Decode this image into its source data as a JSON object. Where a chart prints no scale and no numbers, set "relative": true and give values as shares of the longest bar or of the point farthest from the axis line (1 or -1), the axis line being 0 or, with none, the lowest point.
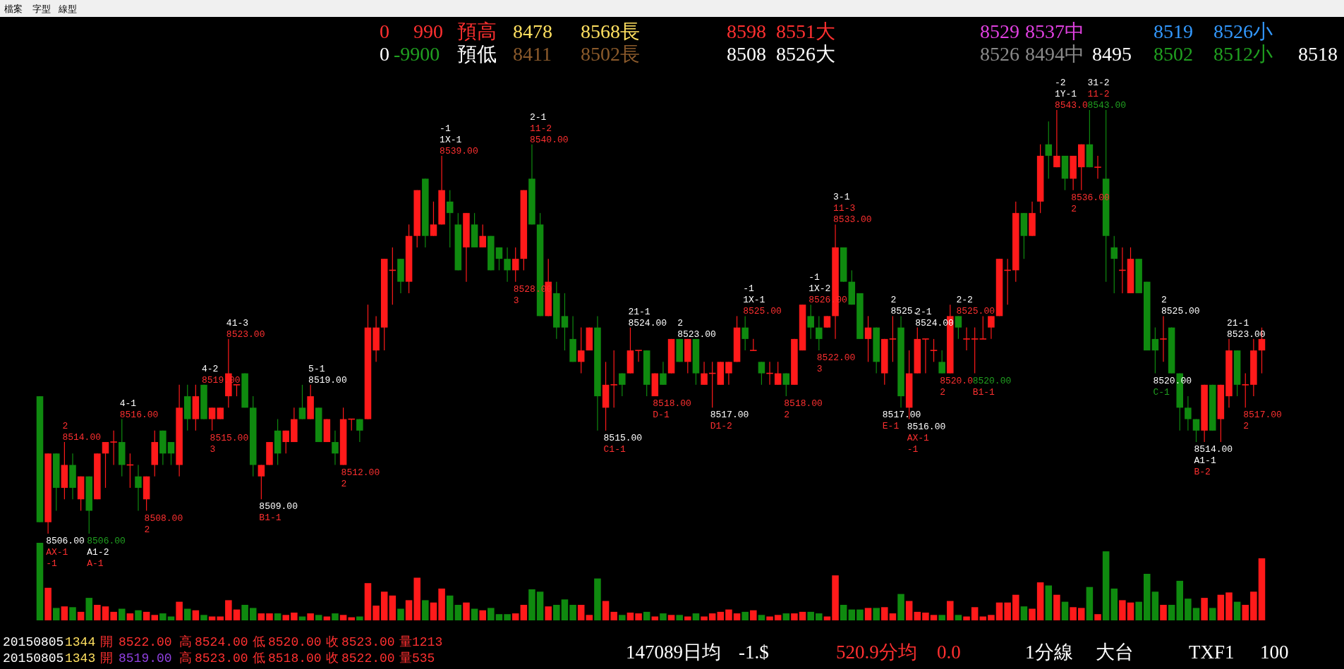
{
  "chart_data": [
    {
      "type": "candlestick",
      "tick_labels": false,
      "categories": [
        null,
        null,
        null,
        null,
        null,
        null,
        null,
        null,
        null,
        null,
        null,
        null,
        null,
        null,
        null,
        null,
        null,
        null,
        null,
        null,
        null,
        null,
        null,
        null,
        null,
        null,
        null,
        null,
        null,
        null,
        null,
        null,
        null,
        null,
        null,
        null,
        null,
        null,
        null,
        null,
        null,
        null,
        null,
        null,
        null,
        null,
        null,
        null,
        null,
        null,
        null,
        null,
        null,
        null,
        null,
        null,
        null,
        null,
        null,
        null,
        null,
        null,
        null,
        null,
        null,
        null,
        null,
        null,
        null,
        null,
        null,
        null,
        null,
        null,
        null,
        null,
        null,
        null,
        null,
        null,
        null,
        null,
        null,
        null,
        null,
        null,
        null,
        null,
        null,
        null,
        null,
        null,
        null,
        null,
        null,
        null,
        null,
        null,
        null,
        null,
        null,
        null,
        null,
        null,
        null,
        null,
        null,
        null,
        null,
        null,
        null,
        null,
        null,
        null,
        null,
        null,
        null,
        null,
        null,
        null,
        null,
        null,
        null,
        null,
        null,
        null,
        null,
        null,
        null,
        null,
        null,
        null,
        null,
        null,
        null,
        null,
        null,
        null,
        null,
        null,
        null,
        null,
        null,
        null,
        null,
        null,
        null,
        null,
        null,
        null
      ],
      "ohlc": [
        [
          8518,
          8518,
          8507,
          8507
        ],
        [
          8507,
          8513,
          8506,
          8513
        ],
        [
          8513,
          8513,
          8508,
          8510
        ],
        [
          8510,
          8514,
          8509,
          8512
        ],
        [
          8512,
          8513,
          8509,
          8510
        ],
        [
          8509,
          8511,
          8508,
          8511
        ],
        [
          8511,
          8511,
          8506,
          8508
        ],
        [
          8509,
          8513,
          8509,
          8513
        ],
        [
          8513,
          8514,
          8510,
          8514
        ],
        [
          8514,
          8515,
          8512,
          8514
        ],
        [
          8514,
          8516,
          8511,
          8512
        ],
        [
          8512,
          8513,
          8510,
          8512
        ],
        [
          8511,
          8512,
          8508,
          8510
        ],
        [
          8509,
          8511,
          8508,
          8511
        ],
        [
          8512,
          8515,
          8511,
          8514
        ],
        [
          8515,
          8515,
          8512,
          8513
        ],
        [
          8514,
          8514,
          8512,
          8513
        ],
        [
          8512,
          8519,
          8511,
          8517
        ],
        [
          8518,
          8519,
          8515,
          8516
        ],
        [
          8516,
          8519,
          8515,
          8518
        ],
        [
          8519,
          8519,
          8516,
          8516
        ],
        [
          8516,
          8517,
          8515,
          8517
        ],
        [
          8516,
          8517,
          8516,
          8517
        ],
        [
          8518,
          8523,
          8517,
          8520
        ],
        [
          8519,
          8519,
          8518,
          8519
        ],
        [
          8520,
          8520,
          8517,
          8517
        ],
        [
          8517,
          8518,
          8511,
          8512
        ],
        [
          8511,
          8512,
          8509,
          8512
        ],
        [
          8512,
          8514,
          8512,
          8514
        ],
        [
          8515,
          8516,
          8512,
          8513
        ],
        [
          8514,
          8515,
          8513,
          8515
        ],
        [
          8514,
          8517,
          8514,
          8516
        ],
        [
          8517,
          8519,
          8516,
          8516
        ],
        [
          8516,
          8519,
          8516,
          8518
        ],
        [
          8517,
          8517,
          8514,
          8514
        ],
        [
          8514,
          8516,
          8514,
          8516
        ],
        [
          8514,
          8515,
          8512,
          8513
        ],
        [
          8512,
          8517,
          8512,
          8516
        ],
        [
          8516,
          8516,
          8515,
          8516
        ],
        [
          8516,
          8516,
          8514,
          8515
        ],
        [
          8516,
          8526,
          8516,
          8524
        ],
        [
          8522,
          8525,
          8521,
          8524
        ],
        [
          8524,
          8530,
          8522,
          8530
        ],
        [
          8529,
          8531,
          8526,
          8529
        ],
        [
          8530,
          8530,
          8527,
          8528
        ],
        [
          8528,
          8533,
          8527,
          8532
        ],
        [
          8532,
          8536,
          8531,
          8536
        ],
        [
          8537,
          8537,
          8531,
          8532
        ],
        [
          8532,
          8535,
          8532,
          8533
        ],
        [
          8533,
          8539,
          8533,
          8536
        ],
        [
          8535,
          8536,
          8531,
          8534
        ],
        [
          8533,
          8534,
          8529,
          8529
        ],
        [
          8531,
          8534,
          8528,
          8534
        ],
        [
          8533,
          8534,
          8531,
          8531
        ],
        [
          8531,
          8533,
          8531,
          8532
        ],
        [
          8532,
          8532,
          8529,
          8529
        ],
        [
          8531,
          8531,
          8529,
          8530
        ],
        [
          8530,
          8531,
          8528,
          8529
        ],
        [
          8529,
          8531,
          8528,
          8530
        ],
        [
          8530,
          8536,
          8529,
          8536
        ],
        [
          8537,
          8540,
          8533,
          8533
        ],
        [
          8533,
          8534,
          8525,
          8525
        ],
        [
          8525,
          8530,
          8525,
          8528
        ],
        [
          8527,
          8528,
          8523,
          8524
        ],
        [
          8525,
          8527,
          8522,
          8524
        ],
        [
          8523,
          8525,
          8521,
          8521
        ],
        [
          8521,
          8524,
          8520,
          8522
        ],
        [
          8522,
          8524,
          8522,
          8524
        ],
        [
          8524,
          8525,
          8515,
          8518
        ],
        [
          8517,
          8521,
          8515,
          8519
        ],
        [
          8519,
          8522,
          8517,
          8519
        ],
        [
          8520,
          8520,
          8518,
          8519
        ],
        [
          8520,
          8524,
          8520,
          8522
        ],
        [
          8522,
          8522,
          8521,
          8522
        ],
        [
          8522,
          8522,
          8518,
          8519
        ],
        [
          8518,
          8520,
          8518,
          8520
        ],
        [
          8520,
          8521,
          8519,
          8519
        ],
        [
          8520,
          8523,
          8520,
          8523
        ],
        [
          8523,
          8523,
          8521,
          8521
        ],
        [
          8521,
          8523,
          8520,
          8523
        ],
        [
          8523,
          8523,
          8519,
          8520
        ],
        [
          8519,
          8521,
          8519,
          8520
        ],
        [
          8520,
          8521,
          8517,
          8520
        ],
        [
          8519,
          8521,
          8519,
          8521
        ],
        [
          8520,
          8521,
          8519,
          8521
        ],
        [
          8521,
          8525,
          8521,
          8524
        ],
        [
          8524,
          8525,
          8522,
          8523
        ],
        [
          8522,
          8523,
          8522,
          8522
        ],
        [
          8521,
          8521,
          8519,
          8520
        ],
        [
          8520,
          8521,
          8519,
          8520
        ],
        [
          8519,
          8521,
          8519,
          8520
        ],
        [
          8520,
          8520,
          8518,
          8519
        ],
        [
          8519,
          8523,
          8519,
          8523
        ],
        [
          8522,
          8526,
          8522,
          8526
        ],
        [
          8525,
          8526,
          8523,
          8524
        ],
        [
          8524,
          8525,
          8522,
          8523
        ],
        [
          8524,
          8525,
          8524,
          8525
        ],
        [
          8525,
          8533,
          8523,
          8531
        ],
        [
          8531,
          8531,
          8528,
          8528
        ],
        [
          8528,
          8529,
          8526,
          8526
        ],
        [
          8527,
          8527,
          8523,
          8523
        ],
        [
          8523,
          8525,
          8521,
          8524
        ],
        [
          8524,
          8524,
          8520,
          8521
        ],
        [
          8520,
          8523,
          8519,
          8523
        ],
        [
          8523,
          8525,
          8521,
          8523
        ],
        [
          8524,
          8525,
          8517,
          8518
        ],
        [
          8517,
          8522,
          8516,
          8520
        ],
        [
          8520,
          8524,
          8520,
          8523
        ],
        [
          8523,
          8523,
          8520,
          8523
        ],
        [
          8522,
          8523,
          8521,
          8522
        ],
        [
          8521,
          8522,
          8520,
          8520
        ],
        [
          8520,
          8526,
          8520,
          8525
        ],
        [
          8525,
          8525,
          8523,
          8524
        ],
        [
          8523,
          8524,
          8522,
          8523
        ],
        [
          8523,
          8524,
          8520,
          8523
        ],
        [
          8523,
          8525,
          8523,
          8523
        ],
        [
          8524,
          8525,
          8523,
          8525
        ],
        [
          8525,
          8530,
          8525,
          8530
        ],
        [
          8529,
          8530,
          8526,
          8529
        ],
        [
          8529,
          8535,
          8528,
          8534
        ],
        [
          8534,
          8534,
          8530,
          8532
        ],
        [
          8532,
          8535,
          8532,
          8534
        ],
        [
          8535,
          8540,
          8534,
          8539
        ],
        [
          8540,
          8542,
          8537,
          8539
        ],
        [
          8538,
          8543,
          8538,
          8539
        ],
        [
          8539,
          8539,
          8536,
          8537
        ],
        [
          8537,
          8539,
          8536,
          8539
        ],
        [
          8538,
          8540,
          8536,
          8540
        ],
        [
          8540,
          8543,
          8538,
          8538
        ],
        [
          8538,
          8539,
          8537,
          8538
        ],
        [
          8537,
          8543,
          8528,
          8532
        ],
        [
          8531,
          8532,
          8527,
          8530
        ],
        [
          8529,
          8531,
          8527,
          8529
        ],
        [
          8527,
          8531,
          8527,
          8530
        ],
        [
          8530,
          8530,
          8527,
          8527
        ],
        [
          8528,
          8528,
          8522,
          8522
        ],
        [
          8523,
          8524,
          8520,
          8522
        ],
        [
          8523,
          8525,
          8521,
          8523
        ],
        [
          8524,
          8524,
          8520,
          8520
        ],
        [
          8520,
          8520,
          8515,
          8517
        ],
        [
          8517,
          8518,
          8515,
          8516
        ],
        [
          8516,
          8516,
          8514,
          8515
        ],
        [
          8515,
          8519,
          8514,
          8519
        ],
        [
          8519,
          8519,
          8515,
          8515
        ],
        [
          8516,
          8519,
          8514,
          8519
        ],
        [
          8518,
          8523,
          8517,
          8522
        ],
        [
          8522,
          8522,
          8518,
          8519
        ],
        [
          8519,
          8520,
          8517,
          8519
        ],
        [
          8519,
          8523,
          8518,
          8522
        ],
        [
          8522,
          8524,
          8520,
          8523
        ]
      ],
      "colors": [
        "#0f8a0f",
        "#ff1a1a",
        "#0f8a0f",
        "#ff1a1a",
        "#0f8a0f",
        "#ff1a1a",
        "#0f8a0f",
        "#ff1a1a",
        "#ff1a1a",
        "#ff1a1a",
        "#0f8a0f",
        "#ff1a1a",
        "#0f8a0f",
        "#ff1a1a",
        "#ff1a1a",
        "#0f8a0f",
        "#0f8a0f",
        "#ff1a1a",
        "#0f8a0f",
        "#ff1a1a",
        "#0f8a0f",
        "#ff1a1a",
        "#ff1a1a",
        "#ff1a1a",
        "#ff1a1a",
        "#0f8a0f",
        "#0f8a0f",
        "#ff1a1a",
        "#ff1a1a",
        "#0f8a0f",
        "#ff1a1a",
        "#ff1a1a",
        "#0f8a0f",
        "#ff1a1a",
        "#0f8a0f",
        "#ff1a1a",
        "#0f8a0f",
        "#ff1a1a",
        "#ff1a1a",
        "#0f8a0f",
        "#ff1a1a",
        "#ff1a1a",
        "#ff1a1a",
        "#ff1a1a",
        "#0f8a0f",
        "#ff1a1a",
        "#ff1a1a",
        "#0f8a0f",
        "#ff1a1a",
        "#ff1a1a",
        "#0f8a0f",
        "#0f8a0f",
        "#ff1a1a",
        "#0f8a0f",
        "#ff1a1a",
        "#0f8a0f",
        "#0f8a0f",
        "#0f8a0f",
        "#ff1a1a",
        "#ff1a1a",
        "#0f8a0f",
        "#0f8a0f",
        "#ff1a1a",
        "#0f8a0f",
        "#0f8a0f",
        "#0f8a0f",
        "#ff1a1a",
        "#ff1a1a",
        "#0f8a0f",
        "#ff1a1a",
        "#ff1a1a",
        "#0f8a0f",
        "#ff1a1a",
        "#ff1a1a",
        "#0f8a0f",
        "#ff1a1a",
        "#0f8a0f",
        "#ff1a1a",
        "#0f8a0f",
        "#ff1a1a",
        "#0f8a0f",
        "#ff1a1a",
        "#ff1a1a",
        "#ff1a1a",
        "#ff1a1a",
        "#ff1a1a",
        "#0f8a0f",
        "#ff1a1a",
        "#0f8a0f",
        "#ff1a1a",
        "#ff1a1a",
        "#0f8a0f",
        "#ff1a1a",
        "#ff1a1a",
        "#0f8a0f",
        "#0f8a0f",
        "#ff1a1a",
        "#ff1a1a",
        "#0f8a0f",
        "#0f8a0f",
        "#0f8a0f",
        "#ff1a1a",
        "#0f8a0f",
        "#ff1a1a",
        "#ff1a1a",
        "#0f8a0f",
        "#ff1a1a",
        "#ff1a1a",
        "#ff1a1a",
        "#ff1a1a",
        "#0f8a0f",
        "#ff1a1a",
        "#0f8a0f",
        "#ff1a1a",
        "#ff1a1a",
        "#ff1a1a",
        "#ff1a1a",
        "#ff1a1a",
        "#ff1a1a",
        "#ff1a1a",
        "#0f8a0f",
        "#ff1a1a",
        "#ff1a1a",
        "#0f8a0f",
        "#ff1a1a",
        "#0f8a0f",
        "#ff1a1a",
        "#ff1a1a",
        "#0f8a0f",
        "#ff1a1a",
        "#0f8a0f",
        "#0f8a0f",
        "#ff1a1a",
        "#ff1a1a",
        "#0f8a0f",
        "#0f8a0f",
        "#0f8a0f",
        "#ff1a1a",
        "#0f8a0f",
        "#0f8a0f",
        "#0f8a0f",
        "#0f8a0f",
        "#ff1a1a",
        "#0f8a0f",
        "#ff1a1a",
        "#ff1a1a",
        "#0f8a0f",
        "#ff1a1a",
        "#ff1a1a",
        "#ff1a1a"
      ],
      "annotations": [
        "檔案",
        "字型",
        "線型",
        "0",
        "990",
        "預高",
        "8478",
        "8568長",
        "8598",
        "8551大",
        "8529",
        "8537中",
        "8519",
        "8526小",
        "0",
        "-9900",
        "預低",
        "8411",
        "8502長",
        "8508",
        "8526大",
        "8526",
        "8494中",
        "8495",
        "8502",
        "8512小",
        "8518",
        "20150805",
        "1344",
        "開",
        "8522.00",
        "高",
        "8524.00",
        "低",
        "8520.00",
        "收",
        "8523.00",
        "量1213",
        "20150805",
        "1343",
        "開",
        "8519.00",
        "高",
        "8523.00",
        "低",
        "8518.00",
        "收",
        "8522.00",
        "量535",
        "147089日均",
        "-1.$",
        "520.9分均",
        "0.0",
        "1分線",
        "大台",
        "TXF1",
        "100",
        "8506.00",
        "AX-1",
        "-1",
        "2",
        "8514.00",
        "8506.00",
        "A1-2",
        "A-1",
        "4-1",
        "8516.00",
        "8508.00",
        "2",
        "4-2",
        "8519.00",
        "8515.00",
        "3",
        "41-3",
        "8523.00",
        "8509.00",
        "B1-1",
        "5-1",
        "8519.00",
        "8512.00",
        "2",
        "-1",
        "1X-1",
        "8539.00",
        "8528.00",
        "3",
        "2-1",
        "11-2",
        "8540.00",
        "8515.00",
        "C1-1",
        "21-1",
        "8524.00",
        "8518.00",
        "D-1",
        "2",
        "8523.00",
        "8517.00",
        "D1-2",
        "-1",
        "1X-1",
        "8525.00",
        "8518.00",
        "2",
        "-1",
        "1X-2",
        "8526.00",
        "8522.00",
        "3",
        "3-1",
        "11-3",
        "8533.00",
        "8517.00",
        "E-1",
        "2",
        "8525.",
        "8516.00",
        "AX-1",
        "-1",
        "2-1",
        "8524.00",
        "8520.0",
        "2",
        "2-2",
        "8525.00",
        "8520.00",
        "B1-1",
        "-2",
        "1Y-1",
        "8543.0",
        "8536.00",
        "2",
        "31-2",
        "11-2",
        "8543.00",
        "8520.00",
        "C-1",
        "2",
        "8525.00",
        "8514.00",
        "A1-1",
        "B-2",
        "21-1",
        "8523.00",
        "8517.00",
        "2"
      ]
    },
    {
      "type": "bar",
      "relative": true,
      "categories": [
        null,
        null,
        null,
        null,
        null,
        null,
        null,
        null,
        null,
        null,
        null,
        null,
        null,
        null,
        null,
        null,
        null,
        null,
        null,
        null,
        null,
        null,
        null,
        null,
        null,
        null,
        null,
        null,
        null,
        null,
        null,
        null,
        null,
        null,
        null,
        null,
        null,
        null,
        null,
        null,
        null,
        null,
        null,
        null,
        null,
        null,
        null,
        null,
        null,
        null,
        null,
        null,
        null,
        null,
        null,
        null,
        null,
        null,
        null,
        null,
        null,
        null,
        null,
        null,
        null,
        null,
        null,
        null,
        null,
        null,
        null,
        null,
        null,
        null,
        null,
        null,
        null,
        null,
        null,
        null,
        null,
        null,
        null,
        null,
        null,
        null,
        null,
        null,
        null,
        null,
        null,
        null,
        null,
        null,
        null,
        null,
        null,
        null,
        null,
        null,
        null,
        null,
        null,
        null,
        null,
        null,
        null,
        null,
        null,
        null,
        null,
        null,
        null,
        null,
        null,
        null,
        null,
        null,
        null,
        null,
        null,
        null,
        null,
        null,
        null,
        null,
        null,
        null,
        null,
        null,
        null,
        null,
        null,
        null,
        null,
        null,
        null,
        null,
        null,
        null,
        null,
        null,
        null,
        null,
        null,
        null,
        null,
        null,
        null,
        null
      ],
      "values": [
        1.0,
        0.42,
        0.16,
        0.18,
        0.17,
        0.11,
        0.29,
        0.2,
        0.18,
        0.11,
        0.15,
        0.09,
        0.13,
        0.11,
        0.07,
        0.09,
        0.05,
        0.24,
        0.15,
        0.13,
        0.07,
        0.05,
        0.05,
        0.26,
        0.14,
        0.2,
        0.16,
        0.09,
        0.09,
        0.09,
        0.07,
        0.1,
        0.05,
        0.09,
        0.07,
        0.05,
        0.09,
        0.07,
        0.04,
        0.05,
        0.48,
        0.19,
        0.37,
        0.32,
        0.15,
        0.26,
        0.55,
        0.26,
        0.23,
        0.41,
        0.32,
        0.2,
        0.23,
        0.15,
        0.13,
        0.16,
        0.08,
        0.08,
        0.09,
        0.2,
        0.4,
        0.37,
        0.18,
        0.2,
        0.27,
        0.2,
        0.2,
        0.07,
        0.54,
        0.25,
        0.11,
        0.07,
        0.1,
        0.09,
        0.11,
        0.05,
        0.09,
        0.07,
        0.07,
        0.05,
        0.09,
        0.05,
        0.09,
        0.11,
        0.14,
        0.09,
        0.11,
        0.13,
        0.07,
        0.05,
        0.07,
        0.09,
        0.09,
        0.11,
        0.11,
        0.09,
        0.05,
        0.58,
        0.2,
        0.14,
        0.14,
        0.16,
        0.16,
        0.17,
        0.09,
        0.34,
        0.25,
        0.11,
        0.1,
        0.07,
        0.07,
        0.25,
        0.07,
        0.05,
        0.17,
        0.05,
        0.07,
        0.23,
        0.23,
        0.33,
        0.18,
        0.15,
        0.49,
        0.45,
        0.33,
        0.24,
        0.17,
        0.16,
        0.43,
        0.08,
        0.89,
        0.41,
        0.26,
        0.23,
        0.24,
        0.6,
        0.37,
        0.2,
        0.2,
        0.51,
        0.28,
        0.16,
        0.29,
        0.16,
        0.33,
        0.36,
        0.24,
        0.2,
        0.37,
        0.8
      ],
      "colors": [
        "#0f8a0f",
        "#ff1a1a",
        "#0f8a0f",
        "#ff1a1a",
        "#0f8a0f",
        "#ff1a1a",
        "#0f8a0f",
        "#ff1a1a",
        "#ff1a1a",
        "#ff1a1a",
        "#0f8a0f",
        "#ff1a1a",
        "#0f8a0f",
        "#ff1a1a",
        "#ff1a1a",
        "#0f8a0f",
        "#0f8a0f",
        "#ff1a1a",
        "#0f8a0f",
        "#ff1a1a",
        "#0f8a0f",
        "#ff1a1a",
        "#ff1a1a",
        "#ff1a1a",
        "#ff1a1a",
        "#0f8a0f",
        "#0f8a0f",
        "#ff1a1a",
        "#ff1a1a",
        "#0f8a0f",
        "#ff1a1a",
        "#ff1a1a",
        "#0f8a0f",
        "#ff1a1a",
        "#0f8a0f",
        "#ff1a1a",
        "#0f8a0f",
        "#ff1a1a",
        "#ff1a1a",
        "#0f8a0f",
        "#ff1a1a",
        "#ff1a1a",
        "#ff1a1a",
        "#ff1a1a",
        "#0f8a0f",
        "#ff1a1a",
        "#ff1a1a",
        "#0f8a0f",
        "#ff1a1a",
        "#ff1a1a",
        "#0f8a0f",
        "#0f8a0f",
        "#ff1a1a",
        "#0f8a0f",
        "#ff1a1a",
        "#0f8a0f",
        "#0f8a0f",
        "#0f8a0f",
        "#ff1a1a",
        "#ff1a1a",
        "#0f8a0f",
        "#0f8a0f",
        "#ff1a1a",
        "#0f8a0f",
        "#0f8a0f",
        "#0f8a0f",
        "#ff1a1a",
        "#ff1a1a",
        "#0f8a0f",
        "#ff1a1a",
        "#ff1a1a",
        "#0f8a0f",
        "#ff1a1a",
        "#ff1a1a",
        "#0f8a0f",
        "#ff1a1a",
        "#0f8a0f",
        "#ff1a1a",
        "#0f8a0f",
        "#ff1a1a",
        "#0f8a0f",
        "#ff1a1a",
        "#ff1a1a",
        "#ff1a1a",
        "#ff1a1a",
        "#ff1a1a",
        "#0f8a0f",
        "#ff1a1a",
        "#0f8a0f",
        "#ff1a1a",
        "#ff1a1a",
        "#0f8a0f",
        "#ff1a1a",
        "#ff1a1a",
        "#0f8a0f",
        "#0f8a0f",
        "#ff1a1a",
        "#ff1a1a",
        "#0f8a0f",
        "#0f8a0f",
        "#0f8a0f",
        "#ff1a1a",
        "#0f8a0f",
        "#ff1a1a",
        "#ff1a1a",
        "#0f8a0f",
        "#ff1a1a",
        "#ff1a1a",
        "#ff1a1a",
        "#ff1a1a",
        "#0f8a0f",
        "#ff1a1a",
        "#0f8a0f",
        "#ff1a1a",
        "#ff1a1a",
        "#ff1a1a",
        "#ff1a1a",
        "#ff1a1a",
        "#ff1a1a",
        "#ff1a1a",
        "#0f8a0f",
        "#ff1a1a",
        "#ff1a1a",
        "#0f8a0f",
        "#ff1a1a",
        "#0f8a0f",
        "#ff1a1a",
        "#ff1a1a",
        "#0f8a0f",
        "#ff1a1a",
        "#0f8a0f",
        "#0f8a0f",
        "#ff1a1a",
        "#ff1a1a",
        "#0f8a0f",
        "#0f8a0f",
        "#0f8a0f",
        "#ff1a1a",
        "#0f8a0f",
        "#0f8a0f",
        "#0f8a0f",
        "#0f8a0f",
        "#ff1a1a",
        "#0f8a0f",
        "#ff1a1a",
        "#ff1a1a",
        "#0f8a0f",
        "#ff1a1a",
        "#ff1a1a",
        "#ff1a1a"
      ]
    }
  ]
}
